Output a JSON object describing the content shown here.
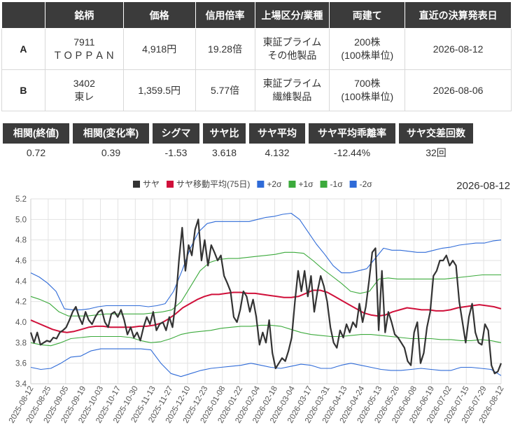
{
  "table": {
    "headers": [
      "",
      "銘柄",
      "価格",
      "信用倍率",
      "上場区分/業種",
      "両建て",
      "直近の決算発表日"
    ],
    "rows": [
      {
        "label": "A",
        "code": "7911",
        "name": "ＴＯＰＰＡＮ",
        "price": "4,918円",
        "margin_ratio": "19.28倍",
        "market": "東証プライム",
        "sector": "その他製品",
        "shares": "200株",
        "unit": "(100株単位)",
        "earnings_date": "2026-08-12"
      },
      {
        "label": "B",
        "code": "3402",
        "name": "東レ",
        "price": "1,359.5円",
        "margin_ratio": "5.77倍",
        "market": "東証プライム",
        "sector": "繊維製品",
        "shares": "700株",
        "unit": "(100株単位)",
        "earnings_date": "2026-08-06"
      }
    ]
  },
  "stats": [
    {
      "label": "相関(終値)",
      "value": "0.72"
    },
    {
      "label": "相関(変化率)",
      "value": "0.39"
    },
    {
      "label": "シグマ",
      "value": "-1.53"
    },
    {
      "label": "サヤ比",
      "value": "3.618"
    },
    {
      "label": "サヤ平均",
      "value": "4.132"
    },
    {
      "label": "サヤ平均乖離率",
      "value": "-12.44%"
    },
    {
      "label": "サヤ交差回数",
      "value": "32回"
    }
  ],
  "chart_data": {
    "type": "line",
    "title": "2026-08-12",
    "ylim": [
      3.4,
      5.2
    ],
    "yticks": [
      "3.4",
      "3.6",
      "3.8",
      "4.0",
      "4.2",
      "4.4",
      "4.6",
      "4.8",
      "5.0",
      "5.2"
    ],
    "xticks": [
      "2025-08-12",
      "2025-08-25",
      "2025-09-05",
      "2025-09-19",
      "2025-10-03",
      "2025-10-17",
      "2025-10-30",
      "2025-11-13",
      "2025-11-27",
      "2025-12-10",
      "2025-12-23",
      "2026-01-08",
      "2026-01-22",
      "2026-02-04",
      "2026-02-18",
      "2026-03-04",
      "2026-03-17",
      "2026-03-31",
      "2026-04-13",
      "2026-04-24",
      "2026-05-13",
      "2026-05-26",
      "2026-06-08",
      "2026-06-19",
      "2026-07-02",
      "2026-07-15",
      "2026-07-29",
      "2026-08-12"
    ],
    "grid": true,
    "legend_position": "top",
    "series": [
      {
        "name": "サヤ",
        "color": "#333333",
        "values": [
          3.9,
          3.8,
          3.9,
          3.78,
          3.8,
          3.82,
          3.81,
          3.85,
          3.84,
          3.9,
          3.92,
          3.95,
          4.02,
          4.1,
          4.15,
          4.05,
          3.98,
          4.1,
          4.02,
          3.98,
          4.05,
          4.1,
          4.12,
          4.0,
          3.95,
          4.08,
          4.1,
          4.05,
          4.12,
          4.02,
          3.88,
          3.95,
          3.85,
          3.9,
          3.82,
          3.95,
          4.05,
          3.98,
          4.1,
          3.92,
          3.98,
          4.0,
          3.92,
          4.05,
          3.95,
          4.2,
          4.6,
          4.92,
          4.5,
          4.75,
          4.65,
          4.9,
          5.0,
          4.6,
          4.8,
          4.55,
          4.75,
          4.68,
          4.6,
          4.65,
          4.45,
          4.38,
          4.3,
          4.05,
          4.0,
          4.12,
          4.3,
          4.25,
          4.1,
          4.22,
          4.05,
          3.78,
          3.9,
          3.8,
          4.02,
          3.7,
          3.55,
          3.6,
          3.65,
          3.62,
          3.72,
          3.85,
          4.2,
          4.5,
          4.3,
          4.5,
          4.25,
          4.45,
          4.1,
          4.3,
          4.45,
          4.35,
          4.2,
          3.95,
          3.8,
          3.75,
          3.92,
          3.85,
          3.98,
          3.9,
          4.0,
          3.95,
          4.18,
          4.0,
          4.15,
          4.4,
          4.68,
          4.72,
          3.92,
          4.5,
          3.9,
          4.1,
          4.0,
          3.88,
          3.85,
          3.8,
          3.75,
          3.62,
          3.58,
          3.9,
          4.0,
          3.6,
          3.7,
          3.95,
          4.1,
          4.45,
          4.5,
          4.6,
          4.6,
          4.65,
          4.55,
          4.6,
          4.55,
          4.2,
          4.0,
          3.8,
          4.05,
          4.18,
          3.9,
          3.8,
          3.78,
          3.98,
          3.92,
          3.58,
          3.5,
          3.52,
          3.6
        ]
      },
      {
        "name": "サヤ移動平均(75日)",
        "color": "#d0103a",
        "values": [
          4.02,
          3.99,
          3.96,
          3.93,
          3.91,
          3.9,
          3.91,
          3.93,
          3.95,
          3.96,
          3.96,
          3.95,
          3.95,
          3.95,
          3.95,
          3.96,
          3.96,
          3.97,
          3.99,
          4.03,
          4.08,
          4.14,
          4.18,
          4.22,
          4.25,
          4.27,
          4.27,
          4.28,
          4.29,
          4.29,
          4.28,
          4.28,
          4.27,
          4.26,
          4.25,
          4.24,
          4.24,
          4.25,
          4.28,
          4.31,
          4.31,
          4.29,
          4.25,
          4.21,
          4.17,
          4.13,
          4.09,
          4.07,
          4.06,
          4.07,
          4.1,
          4.12,
          4.14,
          4.13,
          4.12,
          4.12,
          4.11,
          4.11,
          4.12,
          4.14,
          4.15,
          4.16,
          4.17,
          4.16,
          4.15,
          4.13
        ]
      },
      {
        "name": "+2σ",
        "color": "#2f6bd8",
        "values": [
          4.48,
          4.44,
          4.38,
          4.3,
          4.13,
          4.12,
          4.12,
          4.13,
          4.15,
          4.16,
          4.16,
          4.16,
          4.16,
          4.16,
          4.15,
          4.16,
          4.18,
          4.3,
          4.5,
          4.72,
          4.88,
          4.96,
          4.98,
          4.98,
          4.98,
          4.98,
          4.98,
          5.0,
          5.02,
          5.03,
          5.05,
          5.06,
          5.0,
          4.88,
          4.76,
          4.66,
          4.55,
          4.48,
          4.48,
          4.5,
          4.52,
          4.62,
          4.72,
          4.7,
          4.7,
          4.69,
          4.68,
          4.68,
          4.7,
          4.72,
          4.73,
          4.75,
          4.76,
          4.77,
          4.77,
          4.79,
          4.8
        ]
      },
      {
        "name": "+1σ",
        "color": "#3caa3c",
        "values": [
          4.25,
          4.22,
          4.18,
          4.1,
          4.06,
          4.06,
          4.06,
          4.07,
          4.08,
          4.08,
          4.08,
          4.08,
          4.08,
          4.09,
          4.1,
          4.12,
          4.2,
          4.35,
          4.5,
          4.58,
          4.61,
          4.62,
          4.62,
          4.63,
          4.64,
          4.65,
          4.66,
          4.68,
          4.68,
          4.67,
          4.6,
          4.52,
          4.45,
          4.38,
          4.3,
          4.28,
          4.3,
          4.42,
          4.43,
          4.42,
          4.42,
          4.42,
          4.42,
          4.42,
          4.42,
          4.43,
          4.44,
          4.45,
          4.46,
          4.46,
          4.46
        ]
      },
      {
        "name": "-1σ",
        "color": "#3caa3c",
        "values": [
          3.8,
          3.78,
          3.77,
          3.8,
          3.84,
          3.85,
          3.86,
          3.86,
          3.86,
          3.86,
          3.85,
          3.82,
          3.8,
          3.81,
          3.84,
          3.88,
          3.9,
          3.91,
          3.92,
          3.94,
          3.95,
          3.96,
          3.96,
          3.97,
          3.97,
          3.96,
          3.93,
          3.9,
          3.88,
          3.87,
          3.86,
          3.86,
          3.87,
          3.88,
          3.88,
          3.87,
          3.86,
          3.85,
          3.84,
          3.84,
          3.84,
          3.83,
          3.83,
          3.82,
          3.82,
          3.83,
          3.82,
          3.8
        ]
      },
      {
        "name": "-2σ",
        "color": "#2f6bd8",
        "values": [
          3.56,
          3.54,
          3.55,
          3.6,
          3.66,
          3.67,
          3.72,
          3.74,
          3.74,
          3.74,
          3.74,
          3.74,
          3.73,
          3.6,
          3.5,
          3.47,
          3.5,
          3.53,
          3.55,
          3.56,
          3.57,
          3.58,
          3.6,
          3.58,
          3.56,
          3.55,
          3.57,
          3.59,
          3.58,
          3.55,
          3.55,
          3.58,
          3.6,
          3.58,
          3.56,
          3.54,
          3.53,
          3.53,
          3.54,
          3.55,
          3.54,
          3.53,
          3.53,
          3.56,
          3.56,
          3.55,
          3.54,
          3.48
        ]
      }
    ]
  }
}
